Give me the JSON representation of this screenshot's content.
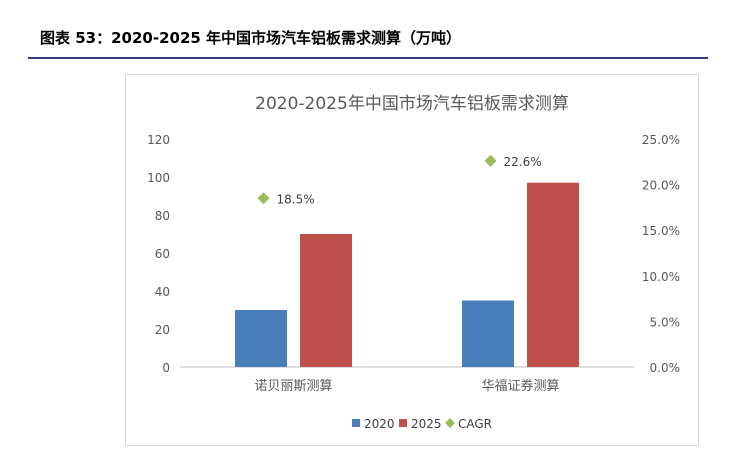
{
  "caption": "图表 53：2020-2025 年中国市场汽车铝板需求测算（万吨）",
  "colors": {
    "s2020": "#4a7ebb",
    "s2025": "#c0504d",
    "cagr": "#9bbb59",
    "rule": "#2f3c7e"
  },
  "chart_data": {
    "type": "bar",
    "title": "2020-2025年中国市场汽车铝板需求测算",
    "categories": [
      "诺贝丽斯测算",
      "华福证券测算"
    ],
    "series": [
      {
        "name": "2020",
        "values": [
          30,
          35
        ]
      },
      {
        "name": "2025",
        "values": [
          70,
          97
        ]
      }
    ],
    "cagr": {
      "name": "CAGR",
      "values": [
        0.185,
        0.226
      ],
      "labels": [
        "18.5%",
        "22.6%"
      ]
    },
    "ylim": [
      0,
      120
    ],
    "y_ticks": [
      "0",
      "20",
      "40",
      "60",
      "80",
      "100",
      "120"
    ],
    "y2lim": [
      0,
      0.25
    ],
    "y2_ticks": [
      "0.0%",
      "5.0%",
      "10.0%",
      "15.0%",
      "20.0%",
      "25.0%"
    ],
    "legend": [
      "2020",
      "2025",
      "CAGR"
    ],
    "legend_position": "bottom",
    "grid": false
  }
}
